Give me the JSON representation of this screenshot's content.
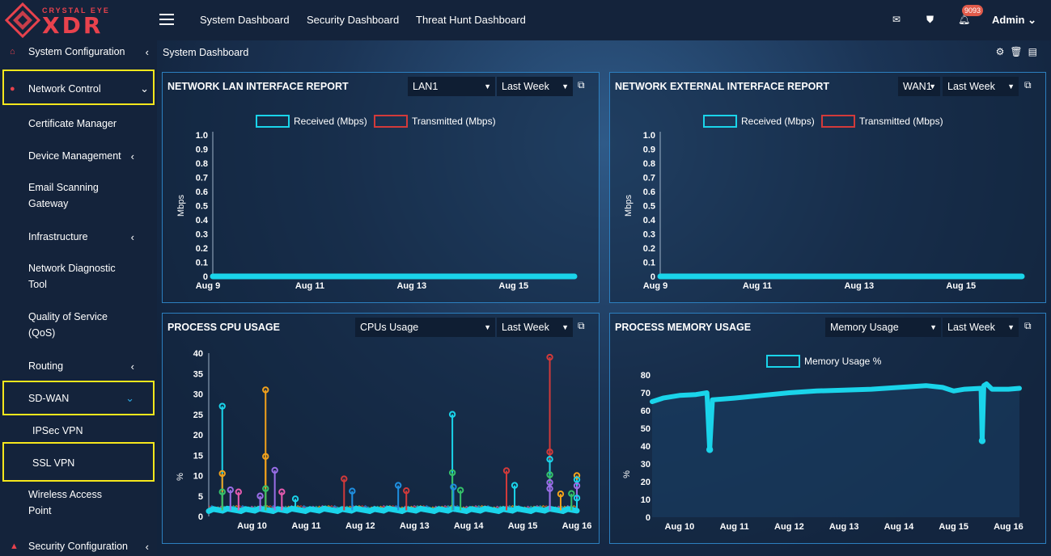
{
  "brand": {
    "small": "CRYSTAL EYE",
    "big": "XDR"
  },
  "sidebar": {
    "items": [
      {
        "label": "System Configuration",
        "chevron": "‹"
      },
      {
        "label": "Network Control",
        "chevron": "⌄"
      },
      {
        "label": "Certificate Manager"
      },
      {
        "label": "Device Management",
        "chevron": "‹"
      },
      {
        "label_line1": "Email Scanning",
        "label_line2": "Gateway"
      },
      {
        "label": "Infrastructure",
        "chevron": "‹"
      },
      {
        "label_line1": "Network Diagnostic",
        "label_line2": "Tool"
      },
      {
        "label_line1": "Quality of Service",
        "label_line2": "(QoS)"
      },
      {
        "label": "Routing",
        "chevron": "‹"
      },
      {
        "label": "SD-WAN",
        "chevron": "⌄"
      },
      {
        "label": "IPSec VPN"
      },
      {
        "label": "SSL VPN"
      },
      {
        "label_line1": "Wireless Access",
        "label_line2": "Point"
      },
      {
        "label": "Security Configuration",
        "chevron": "‹"
      }
    ]
  },
  "topbar": {
    "links": [
      "System Dashboard",
      "Security Dashboard",
      "Threat Hunt Dashboard"
    ],
    "notification_count": "9093",
    "user": "Admin"
  },
  "breadcrumb": "System Dashboard",
  "panels": {
    "lan": {
      "title": "NETWORK LAN INTERFACE REPORT",
      "interface": "LAN1",
      "range": "Last Week",
      "legend": [
        "Received (Mbps)",
        "Transmitted (Mbps)"
      ],
      "ylabel": "Mbps"
    },
    "wan": {
      "title": "NETWORK EXTERNAL INTERFACE REPORT",
      "interface": "WAN1",
      "range": "Last Week",
      "legend": [
        "Received (Mbps)",
        "Transmitted (Mbps)"
      ],
      "ylabel": "Mbps"
    },
    "cpu": {
      "title": "PROCESS CPU USAGE",
      "metric": "CPUs Usage",
      "range": "Last Week",
      "ylabel": "%"
    },
    "mem": {
      "title": "PROCESS MEMORY USAGE",
      "metric": "Memory Usage",
      "range": "Last Week",
      "legend": [
        "Memory Usage %"
      ],
      "ylabel": "%"
    }
  },
  "colors": {
    "received": "#1ad4ea",
    "transmitted": "#d23a3a",
    "accent": "#2c7fbf",
    "highlight": "#f6e71c",
    "brand": "#e8424d"
  },
  "chart_data": [
    {
      "type": "line",
      "title": "NETWORK LAN INTERFACE REPORT",
      "ylabel": "Mbps",
      "ylim": [
        0,
        1.0
      ],
      "yticks": [
        "0",
        "0.1",
        "0.2",
        "0.3",
        "0.4",
        "0.5",
        "0.6",
        "0.7",
        "0.8",
        "0.9",
        "1.0"
      ],
      "xticks": [
        "Aug 9",
        "Aug 11",
        "Aug 13",
        "Aug 15"
      ],
      "series": [
        {
          "name": "Received (Mbps)",
          "values": [
            0,
            0,
            0,
            0,
            0,
            0,
            0
          ]
        },
        {
          "name": "Transmitted (Mbps)",
          "values": [
            0,
            0,
            0,
            0,
            0,
            0,
            0
          ]
        }
      ]
    },
    {
      "type": "line",
      "title": "NETWORK EXTERNAL INTERFACE REPORT",
      "ylabel": "Mbps",
      "ylim": [
        0,
        1.0
      ],
      "yticks": [
        "0",
        "0.1",
        "0.2",
        "0.3",
        "0.4",
        "0.5",
        "0.6",
        "0.7",
        "0.8",
        "0.9",
        "1.0"
      ],
      "xticks": [
        "Aug 9",
        "Aug 11",
        "Aug 13",
        "Aug 15"
      ],
      "series": [
        {
          "name": "Received (Mbps)",
          "values": [
            0,
            0,
            0,
            0,
            0,
            0,
            0
          ]
        },
        {
          "name": "Transmitted (Mbps)",
          "values": [
            0,
            0,
            0,
            0,
            0,
            0,
            0
          ]
        }
      ]
    },
    {
      "type": "line",
      "title": "PROCESS CPU USAGE",
      "ylabel": "%",
      "ylim": [
        0,
        40
      ],
      "yticks": [
        "0",
        "5",
        "10",
        "15",
        "20",
        "25",
        "30",
        "35",
        "40"
      ],
      "xticks": [
        "Aug 10",
        "Aug 11",
        "Aug 12",
        "Aug 13",
        "Aug 14",
        "Aug 15",
        "Aug 16"
      ],
      "xlim": [
        9.2,
        16.0
      ],
      "spikes": [
        {
          "x": 9.45,
          "y": 27,
          "color": "#1ad4ea"
        },
        {
          "x": 9.45,
          "y": 10.5,
          "color": "#f3a21b"
        },
        {
          "x": 9.45,
          "y": 6,
          "color": "#35c26a"
        },
        {
          "x": 9.6,
          "y": 6.5,
          "color": "#9a6ee8"
        },
        {
          "x": 9.75,
          "y": 6,
          "color": "#e65bb0"
        },
        {
          "x": 10.15,
          "y": 5,
          "color": "#9a6ee8"
        },
        {
          "x": 10.25,
          "y": 31,
          "color": "#f3a21b"
        },
        {
          "x": 10.25,
          "y": 14.7,
          "color": "#f3a21b"
        },
        {
          "x": 10.25,
          "y": 6.8,
          "color": "#35c26a"
        },
        {
          "x": 10.42,
          "y": 11.3,
          "color": "#9a6ee8"
        },
        {
          "x": 10.55,
          "y": 6,
          "color": "#e65bb0"
        },
        {
          "x": 10.8,
          "y": 4.3,
          "color": "#1ad4ea"
        },
        {
          "x": 11.7,
          "y": 9.2,
          "color": "#d23a3a"
        },
        {
          "x": 11.85,
          "y": 6.2,
          "color": "#1f8fe0"
        },
        {
          "x": 12.7,
          "y": 7.6,
          "color": "#1f8fe0"
        },
        {
          "x": 12.85,
          "y": 6.3,
          "color": "#d23a3a"
        },
        {
          "x": 13.7,
          "y": 25,
          "color": "#1ad4ea"
        },
        {
          "x": 13.7,
          "y": 10.7,
          "color": "#35c26a"
        },
        {
          "x": 13.72,
          "y": 7.2,
          "color": "#1f8fe0"
        },
        {
          "x": 13.85,
          "y": 6.4,
          "color": "#35c26a"
        },
        {
          "x": 14.7,
          "y": 11.2,
          "color": "#d23a3a"
        },
        {
          "x": 14.85,
          "y": 7.6,
          "color": "#1ad4ea"
        },
        {
          "x": 15.5,
          "y": 39,
          "color": "#d23a3a"
        },
        {
          "x": 15.5,
          "y": 15.8,
          "color": "#d23a3a"
        },
        {
          "x": 15.5,
          "y": 14,
          "color": "#1ad4ea"
        },
        {
          "x": 15.5,
          "y": 10.2,
          "color": "#35c26a"
        },
        {
          "x": 15.5,
          "y": 8.3,
          "color": "#9a6ee8"
        },
        {
          "x": 15.5,
          "y": 6.8,
          "color": "#9a6ee8"
        },
        {
          "x": 15.7,
          "y": 5.5,
          "color": "#f3a21b"
        },
        {
          "x": 15.9,
          "y": 5.6,
          "color": "#35c26a"
        },
        {
          "x": 16.0,
          "y": 10,
          "color": "#f3a21b"
        },
        {
          "x": 16.0,
          "y": 9,
          "color": "#1ad4ea"
        },
        {
          "x": 16.0,
          "y": 7.5,
          "color": "#9a6ee8"
        },
        {
          "x": 16.0,
          "y": 4.5,
          "color": "#1ad4ea"
        }
      ]
    },
    {
      "type": "line",
      "title": "PROCESS MEMORY USAGE",
      "ylabel": "%",
      "ylim": [
        0,
        80
      ],
      "yticks": [
        "0",
        "10",
        "20",
        "30",
        "40",
        "50",
        "60",
        "70",
        "80"
      ],
      "xticks": [
        "Aug 10",
        "Aug 11",
        "Aug 12",
        "Aug 13",
        "Aug 14",
        "Aug 15",
        "Aug 16"
      ],
      "xlim": [
        9.5,
        16.2
      ],
      "series": [
        {
          "name": "Memory Usage %",
          "points": [
            [
              9.5,
              65
            ],
            [
              9.7,
              67
            ],
            [
              10.0,
              68.5
            ],
            [
              10.3,
              69
            ],
            [
              10.5,
              70
            ],
            [
              10.55,
              38
            ],
            [
              10.6,
              66
            ],
            [
              11.0,
              67
            ],
            [
              11.5,
              68.5
            ],
            [
              12.0,
              70
            ],
            [
              12.5,
              71
            ],
            [
              13.0,
              71.5
            ],
            [
              13.5,
              72
            ],
            [
              14.0,
              73
            ],
            [
              14.5,
              74
            ],
            [
              14.8,
              73
            ],
            [
              15.0,
              71
            ],
            [
              15.2,
              72
            ],
            [
              15.5,
              72.5
            ],
            [
              15.52,
              43
            ],
            [
              15.55,
              74
            ],
            [
              15.6,
              75
            ],
            [
              15.7,
              72
            ],
            [
              16.0,
              72
            ],
            [
              16.2,
              72.5
            ]
          ]
        }
      ]
    }
  ]
}
